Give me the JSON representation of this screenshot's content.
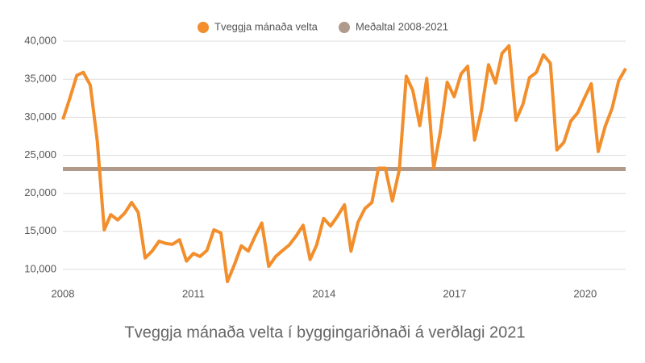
{
  "chart_data": {
    "type": "line",
    "title": "Tveggja mánaða velta í byggingariðnaði á verðlagi 2021",
    "xlim": [
      2008,
      2020.93
    ],
    "xticks": [
      2008,
      2011,
      2014,
      2017,
      2020
    ],
    "ylim": [
      8300,
      41700
    ],
    "yticks": [
      {
        "value": 10000,
        "label": "10,000"
      },
      {
        "value": 15000,
        "label": "15,000"
      },
      {
        "value": 20000,
        "label": "20,000"
      },
      {
        "value": 25000,
        "label": "25,000"
      },
      {
        "value": 30000,
        "label": "30,000"
      },
      {
        "value": 35000,
        "label": "35,000"
      },
      {
        "value": 40000,
        "label": "40,000"
      }
    ],
    "grid": true,
    "legend": "top",
    "series": [
      {
        "name": "Tveggja mánaða velta",
        "color": "#f28e2b",
        "x": [
          2008.0,
          2008.16,
          2008.32,
          2008.47,
          2008.63,
          2008.79,
          2008.95,
          2009.1,
          2009.26,
          2009.42,
          2009.58,
          2009.73,
          2009.89,
          2010.05,
          2010.21,
          2010.37,
          2010.52,
          2010.68,
          2010.84,
          2011.0,
          2011.15,
          2011.31,
          2011.47,
          2011.63,
          2011.78,
          2011.94,
          2012.1,
          2012.26,
          2012.42,
          2012.57,
          2012.73,
          2012.89,
          2013.05,
          2013.2,
          2013.36,
          2013.52,
          2013.68,
          2013.83,
          2013.99,
          2014.15,
          2014.31,
          2014.47,
          2014.62,
          2014.78,
          2014.94,
          2015.1,
          2015.25,
          2015.41,
          2015.57,
          2015.73,
          2015.89,
          2016.04,
          2016.2,
          2016.36,
          2016.52,
          2016.67,
          2016.83,
          2016.99,
          2017.15,
          2017.3,
          2017.46,
          2017.62,
          2017.78,
          2017.94,
          2018.09,
          2018.25,
          2018.41,
          2018.57,
          2018.72,
          2018.88,
          2019.04,
          2019.2,
          2019.35,
          2019.51,
          2019.67,
          2019.83,
          2019.99,
          2020.14,
          2020.3,
          2020.46,
          2020.62,
          2020.77,
          2020.93
        ],
        "values": [
          29700,
          32500,
          35500,
          35900,
          34200,
          26900,
          15200,
          17200,
          16500,
          17400,
          18800,
          17500,
          11500,
          12400,
          13700,
          13400,
          13300,
          13900,
          11100,
          12100,
          11700,
          12500,
          15200,
          14800,
          8400,
          10600,
          13100,
          12400,
          14400,
          16100,
          10400,
          11700,
          12500,
          13200,
          14400,
          15800,
          11300,
          13200,
          16700,
          15700,
          17000,
          18500,
          12400,
          16200,
          18000,
          18800,
          23300,
          23300,
          19000,
          23100,
          35400,
          33500,
          28900,
          35100,
          23300,
          28000,
          34600,
          32700,
          35700,
          36700,
          27000,
          31000,
          36900,
          34500,
          38400,
          39400,
          29600,
          31700,
          35200,
          35900,
          38200,
          37100,
          25700,
          26700,
          29500,
          30600,
          32600,
          34400,
          25500,
          28800,
          31200,
          34800,
          36400
        ]
      },
      {
        "name": "Meðaltal 2008-2021",
        "color": "#b09a8c",
        "x": [
          2008,
          2020.93
        ],
        "values": [
          23200,
          23200
        ]
      }
    ]
  }
}
